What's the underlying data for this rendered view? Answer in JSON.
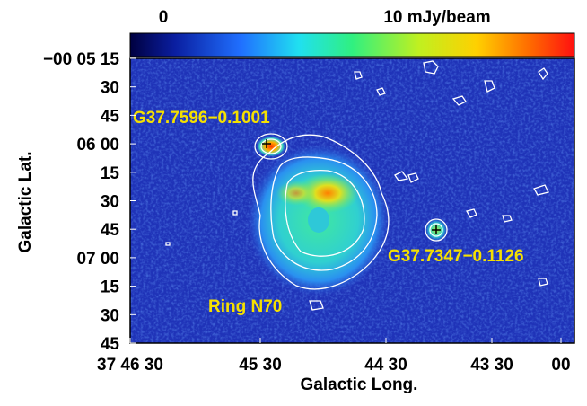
{
  "colorbar": {
    "labels": [
      "0",
      "10 mJy/beam"
    ]
  },
  "axes": {
    "x_label": "Galactic Long.",
    "y_label": "Galactic Lat.",
    "x_ticks": [
      "37 46 30",
      "45 30",
      "44 30",
      "43 30",
      "00"
    ],
    "y_ticks": [
      "−00 05 15",
      "30",
      "45",
      "06 00",
      "15",
      "30",
      "45",
      "07 00",
      "15",
      "30",
      "45"
    ]
  },
  "annotations": [
    "G37.7596−0.1001",
    "G37.7347−0.1126",
    "Ring N70"
  ]
}
